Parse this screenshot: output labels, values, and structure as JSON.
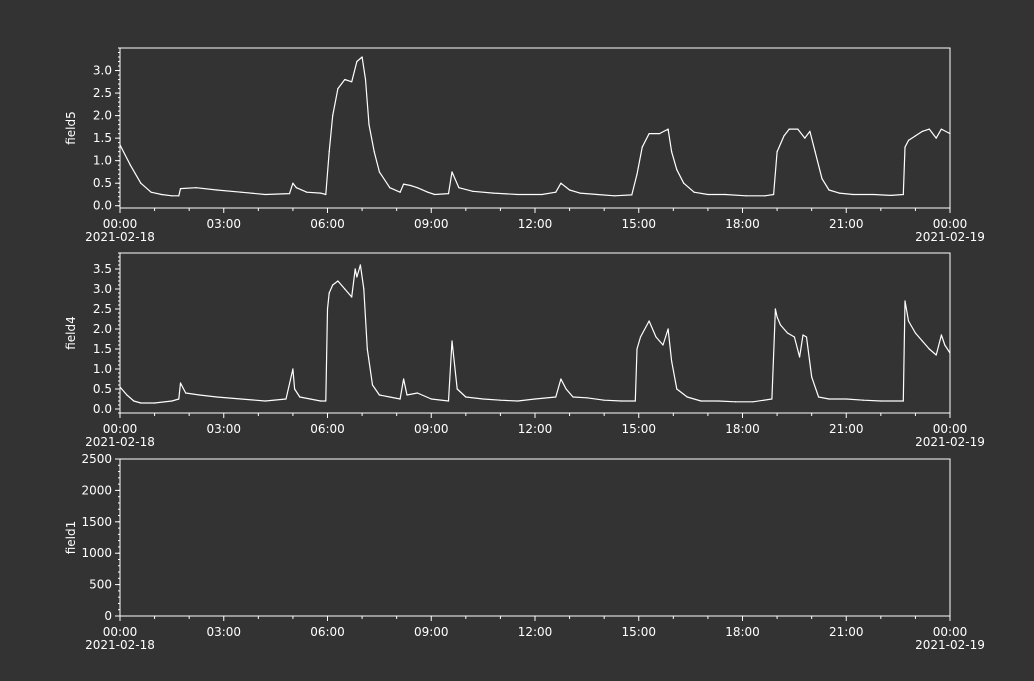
{
  "colors": {
    "background": "#333333",
    "foreground": "#ffffff",
    "line": "#ffffff"
  },
  "time_axis": {
    "tick_labels": [
      "00:00",
      "03:00",
      "06:00",
      "09:00",
      "12:00",
      "15:00",
      "18:00",
      "21:00",
      "00:00"
    ],
    "start_date": "2021-02-18",
    "end_date": "2021-02-19"
  },
  "chart_data": [
    {
      "type": "line",
      "ylabel": "field5",
      "ylim": [
        -0.05,
        3.5
      ],
      "yticks": [
        "0.0",
        "0.5",
        "1.0",
        "1.5",
        "2.0",
        "2.5",
        "3.0"
      ],
      "grid": false,
      "x_range": [
        "2021-02-18 00:00",
        "2021-02-19 00:00"
      ],
      "series": [
        {
          "x_hours": [
            0,
            0.3,
            0.6,
            0.9,
            1.2,
            1.5,
            1.7,
            1.75,
            2.2,
            2.8,
            3.5,
            4.2,
            4.9,
            5.0,
            5.1,
            5.4,
            5.8,
            5.95,
            6.05,
            6.15,
            6.3,
            6.5,
            6.7,
            6.85,
            7.0,
            7.1,
            7.2,
            7.35,
            7.5,
            7.8,
            8.1,
            8.2,
            8.4,
            8.6,
            8.9,
            9.1,
            9.5,
            9.6,
            9.8,
            10.2,
            10.8,
            11.5,
            12.2,
            12.6,
            12.75,
            13.0,
            13.3,
            13.8,
            14.3,
            14.8,
            14.95,
            15.1,
            15.3,
            15.6,
            15.85,
            15.95,
            16.1,
            16.3,
            16.6,
            17.0,
            17.5,
            18.1,
            18.65,
            18.9,
            19.0,
            19.2,
            19.35,
            19.6,
            19.8,
            19.95,
            20.1,
            20.3,
            20.5,
            20.8,
            21.2,
            21.8,
            22.3,
            22.65,
            22.7,
            22.8,
            23.0,
            23.2,
            23.4,
            23.6,
            23.75,
            24.0
          ],
          "values": [
            1.35,
            0.9,
            0.5,
            0.3,
            0.25,
            0.22,
            0.22,
            0.38,
            0.4,
            0.35,
            0.3,
            0.25,
            0.27,
            0.5,
            0.4,
            0.3,
            0.28,
            0.25,
            1.2,
            2.0,
            2.6,
            2.8,
            2.75,
            3.2,
            3.3,
            2.8,
            1.8,
            1.2,
            0.75,
            0.4,
            0.3,
            0.48,
            0.45,
            0.4,
            0.3,
            0.25,
            0.27,
            0.75,
            0.4,
            0.32,
            0.28,
            0.25,
            0.25,
            0.3,
            0.5,
            0.35,
            0.28,
            0.25,
            0.22,
            0.24,
            0.7,
            1.3,
            1.6,
            1.6,
            1.7,
            1.2,
            0.8,
            0.5,
            0.3,
            0.25,
            0.25,
            0.22,
            0.22,
            0.25,
            1.2,
            1.55,
            1.7,
            1.7,
            1.5,
            1.65,
            1.2,
            0.6,
            0.35,
            0.28,
            0.25,
            0.25,
            0.23,
            0.25,
            1.3,
            1.45,
            1.55,
            1.65,
            1.7,
            1.5,
            1.7,
            1.6
          ]
        }
      ]
    },
    {
      "type": "line",
      "ylabel": "field4",
      "ylim": [
        -0.1,
        3.9
      ],
      "yticks": [
        "0.0",
        "0.5",
        "1.0",
        "1.5",
        "2.0",
        "2.5",
        "3.0",
        "3.5"
      ],
      "grid": false,
      "x_range": [
        "2021-02-18 00:00",
        "2021-02-19 00:00"
      ],
      "series": [
        {
          "x_hours": [
            0,
            0.2,
            0.4,
            0.6,
            1.0,
            1.5,
            1.7,
            1.75,
            1.9,
            2.3,
            2.8,
            3.5,
            4.2,
            4.8,
            5.0,
            5.05,
            5.2,
            5.5,
            5.8,
            5.95,
            6.0,
            6.05,
            6.15,
            6.3,
            6.5,
            6.7,
            6.8,
            6.85,
            6.95,
            7.05,
            7.15,
            7.3,
            7.5,
            7.8,
            8.1,
            8.2,
            8.3,
            8.6,
            9.0,
            9.5,
            9.6,
            9.75,
            10.0,
            10.5,
            11.0,
            11.5,
            12.0,
            12.6,
            12.75,
            12.9,
            13.1,
            13.5,
            14.0,
            14.5,
            14.9,
            14.95,
            15.05,
            15.3,
            15.5,
            15.7,
            15.85,
            15.95,
            16.1,
            16.4,
            16.8,
            17.3,
            17.8,
            18.3,
            18.85,
            18.95,
            19.0,
            19.1,
            19.3,
            19.5,
            19.65,
            19.75,
            19.85,
            20.0,
            20.2,
            20.5,
            21.0,
            21.5,
            22.0,
            22.65,
            22.7,
            22.8,
            23.0,
            23.2,
            23.4,
            23.6,
            23.75,
            23.85,
            24.0
          ],
          "values": [
            0.55,
            0.35,
            0.2,
            0.15,
            0.15,
            0.2,
            0.25,
            0.65,
            0.4,
            0.35,
            0.3,
            0.25,
            0.2,
            0.25,
            1.0,
            0.5,
            0.3,
            0.25,
            0.2,
            0.2,
            2.5,
            2.9,
            3.1,
            3.2,
            3.0,
            2.8,
            3.5,
            3.3,
            3.6,
            3.0,
            1.5,
            0.6,
            0.35,
            0.3,
            0.25,
            0.75,
            0.35,
            0.4,
            0.25,
            0.2,
            1.7,
            0.5,
            0.3,
            0.25,
            0.22,
            0.2,
            0.25,
            0.3,
            0.75,
            0.5,
            0.3,
            0.28,
            0.22,
            0.2,
            0.2,
            1.5,
            1.8,
            2.2,
            1.8,
            1.6,
            2.0,
            1.2,
            0.5,
            0.3,
            0.2,
            0.2,
            0.18,
            0.18,
            0.25,
            2.5,
            2.3,
            2.1,
            1.9,
            1.8,
            1.3,
            1.85,
            1.8,
            0.8,
            0.3,
            0.25,
            0.25,
            0.22,
            0.2,
            0.2,
            2.7,
            2.2,
            1.9,
            1.7,
            1.5,
            1.35,
            1.85,
            1.6,
            1.4
          ]
        }
      ]
    },
    {
      "type": "line",
      "ylabel": "field1",
      "ylim": [
        0,
        2500
      ],
      "yticks": [
        "0",
        "500",
        "1000",
        "1500",
        "2000",
        "2500"
      ],
      "grid": false,
      "x_range": [
        "2021-02-18 00:00",
        "2021-02-19 00:00"
      ],
      "series": []
    }
  ]
}
